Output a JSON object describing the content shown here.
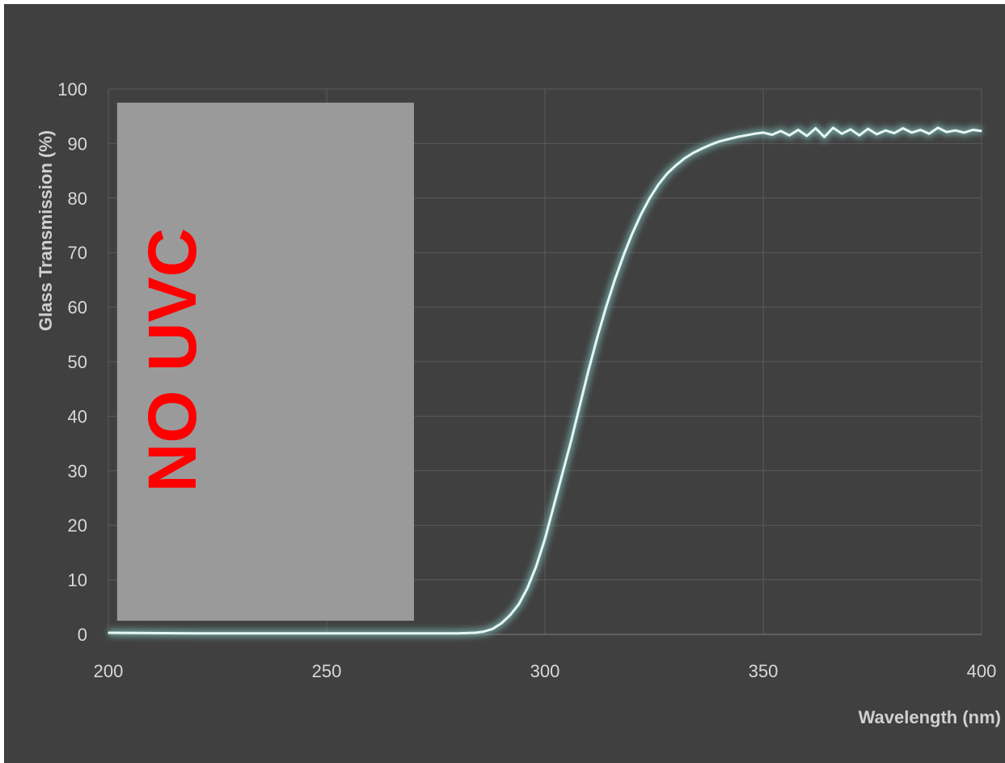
{
  "chart_data": {
    "type": "line",
    "title": "",
    "xlabel": "Wavelength (nm)",
    "ylabel": "Glass Transmission (%)",
    "xlim": [
      200,
      400
    ],
    "ylim": [
      0,
      100
    ],
    "x_ticks": [
      200,
      250,
      300,
      350,
      400
    ],
    "y_ticks": [
      0,
      10,
      20,
      30,
      40,
      50,
      60,
      70,
      80,
      90,
      100
    ],
    "grid": true,
    "series": [
      {
        "x": [
          200,
          220,
          240,
          260,
          270,
          280,
          284,
          286,
          288,
          290,
          292,
          294,
          296,
          298,
          300,
          302,
          304,
          306,
          308,
          310,
          312,
          314,
          316,
          318,
          320,
          322,
          324,
          326,
          328,
          330,
          332,
          334,
          336,
          338,
          340,
          342,
          344,
          346,
          348,
          350,
          352,
          354,
          356,
          358,
          360,
          362,
          364,
          366,
          368,
          370,
          372,
          374,
          376,
          378,
          380,
          382,
          384,
          386,
          388,
          390,
          392,
          394,
          396,
          398,
          400
        ],
        "y": [
          0.3,
          0.2,
          0.2,
          0.2,
          0.2,
          0.2,
          0.3,
          0.5,
          1.0,
          2.0,
          3.5,
          5.5,
          8.5,
          12.5,
          17.5,
          23.5,
          29.5,
          35.5,
          42,
          48.5,
          54.5,
          60,
          65,
          69.5,
          73.5,
          77,
          80,
          82.5,
          84.5,
          86,
          87.3,
          88.3,
          89.1,
          89.8,
          90.4,
          90.8,
          91.2,
          91.5,
          91.8,
          92.0,
          91.6,
          92.3,
          91.5,
          92.5,
          91.4,
          92.8,
          91.2,
          92.9,
          91.8,
          92.6,
          91.5,
          92.7,
          91.7,
          92.4,
          91.9,
          92.8,
          92.0,
          92.5,
          91.8,
          92.9,
          92.1,
          92.4,
          92.0,
          92.5,
          92.3
        ]
      }
    ],
    "annotations": [
      {
        "text": "NO UVC",
        "x_range": [
          202,
          270
        ],
        "y_range": [
          2.5,
          97.5
        ]
      }
    ]
  },
  "colors": {
    "background": "#404040",
    "grid": "#5a5a5a",
    "line": "#e6f6f2",
    "line_glow": "#7ab8b4",
    "overlay_box": "#9a9a9a",
    "overlay_text": "#ff0000",
    "tick_text": "#d8d8d8"
  }
}
